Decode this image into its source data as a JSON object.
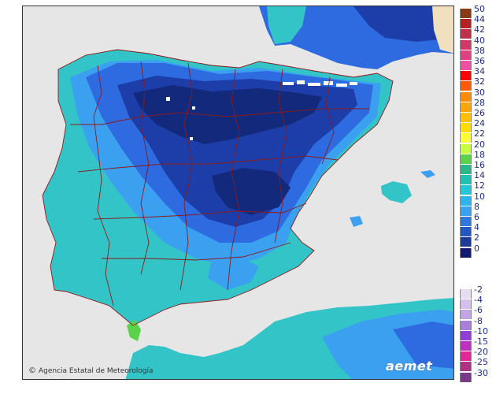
{
  "map": {
    "credit": "Agencia Estatal de Meteorología",
    "logo": "aemet",
    "colors": {
      "sea": "#e6e6e6",
      "land_outside": "#d6d6d6",
      "border": "#8b1a1a",
      "warm_coast": "#33c4c8",
      "mild": "#1fb8d8",
      "cool": "#3ca0f0",
      "cold": "#2e6ae0",
      "very_cold": "#1d3ea8",
      "coldest": "#132a7c",
      "snow_white": "#ffffff",
      "africa_warm": "#36c2b4"
    }
  },
  "legend": {
    "positive": [
      {
        "value": "50",
        "color": "#8b3a14"
      },
      {
        "value": "44",
        "color": "#b22222"
      },
      {
        "value": "42",
        "color": "#c0304a"
      },
      {
        "value": "40",
        "color": "#d03868"
      },
      {
        "value": "38",
        "color": "#e04080"
      },
      {
        "value": "36",
        "color": "#f050a0"
      },
      {
        "value": "34",
        "color": "#ff0000"
      },
      {
        "value": "32",
        "color": "#ff5a00"
      },
      {
        "value": "30",
        "color": "#ff8c00"
      },
      {
        "value": "28",
        "color": "#ffa500"
      },
      {
        "value": "26",
        "color": "#ffc000"
      },
      {
        "value": "24",
        "color": "#ffdd00"
      },
      {
        "value": "22",
        "color": "#ffff33"
      },
      {
        "value": "20",
        "color": "#c8ff3c"
      },
      {
        "value": "18",
        "color": "#5ad24a"
      },
      {
        "value": "16",
        "color": "#2ab88a"
      },
      {
        "value": "14",
        "color": "#22c0b0"
      },
      {
        "value": "12",
        "color": "#22c8d8"
      },
      {
        "value": "10",
        "color": "#2ab4f0"
      },
      {
        "value": "8",
        "color": "#3aa0f0"
      },
      {
        "value": "6",
        "color": "#2e78e0"
      },
      {
        "value": "4",
        "color": "#2456c8"
      },
      {
        "value": "2",
        "color": "#1c3c9c"
      },
      {
        "value": "0",
        "color": "#101a70"
      }
    ],
    "negative": [
      {
        "value": "-2",
        "color": "#e8dcf4"
      },
      {
        "value": "-4",
        "color": "#d4c0ec"
      },
      {
        "value": "-6",
        "color": "#c0a4e4"
      },
      {
        "value": "-8",
        "color": "#a880dc"
      },
      {
        "value": "-10",
        "color": "#9040d8"
      },
      {
        "value": "-15",
        "color": "#c030c0"
      },
      {
        "value": "-20",
        "color": "#e02898"
      },
      {
        "value": "-25",
        "color": "#b03088"
      },
      {
        "value": "-30",
        "color": "#7a3a8c"
      }
    ]
  }
}
